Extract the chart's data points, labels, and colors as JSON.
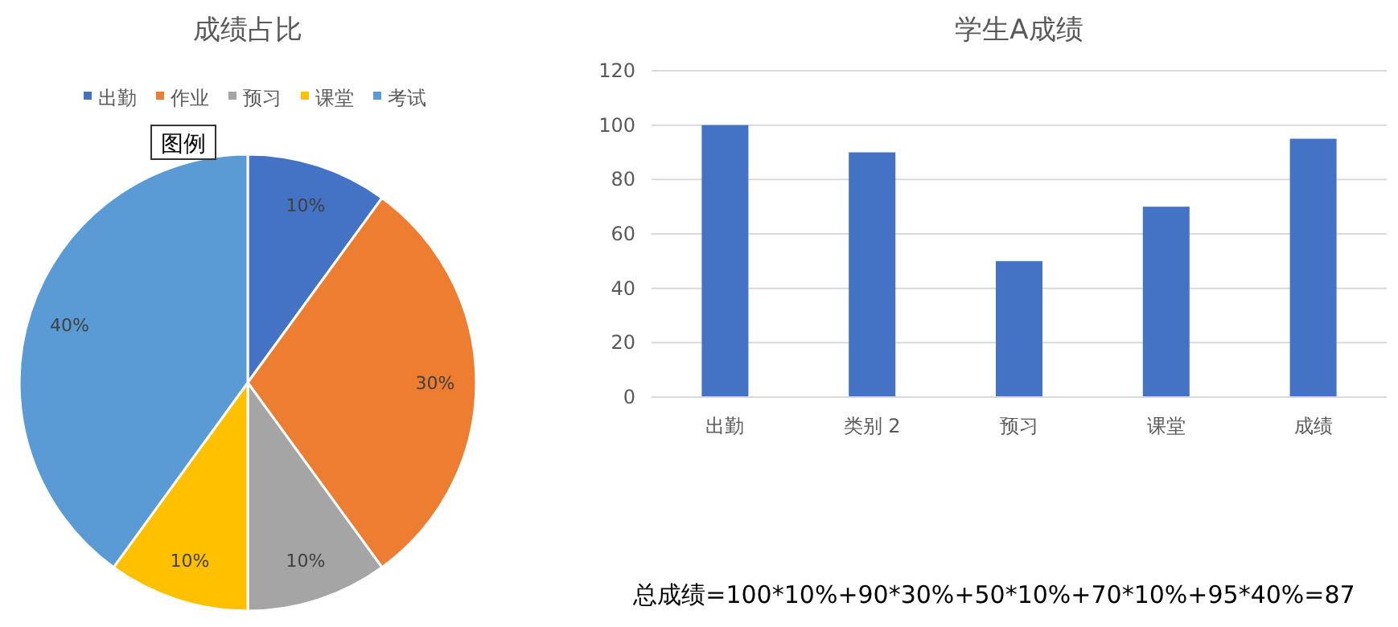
{
  "chart_data": [
    {
      "type": "pie",
      "title": "成绩占比",
      "categories": [
        "出勤",
        "作业",
        "预习",
        "课堂",
        "考试"
      ],
      "values": [
        10,
        30,
        10,
        10,
        40
      ],
      "colors": [
        "#4472c4",
        "#ed7d31",
        "#a5a5a5",
        "#ffc000",
        "#5b9bd5"
      ],
      "value_labels": [
        "10%",
        "30%",
        "10%",
        "10%",
        "40%"
      ],
      "legend": "top",
      "annotations": [
        "图例"
      ]
    },
    {
      "type": "bar",
      "title": "学生A成绩",
      "categories": [
        "出勤",
        "类别 2",
        "预习",
        "课堂",
        "成绩"
      ],
      "values": [
        100,
        90,
        50,
        70,
        95
      ],
      "color": "#4472c4",
      "ylim": [
        0,
        120
      ],
      "yticks": [
        0,
        20,
        40,
        60,
        80,
        100,
        120
      ],
      "grid": "y",
      "annotations": [
        "总成绩=100*10%+90*30%+50*10%+70*10%+95*40%=87"
      ]
    }
  ]
}
